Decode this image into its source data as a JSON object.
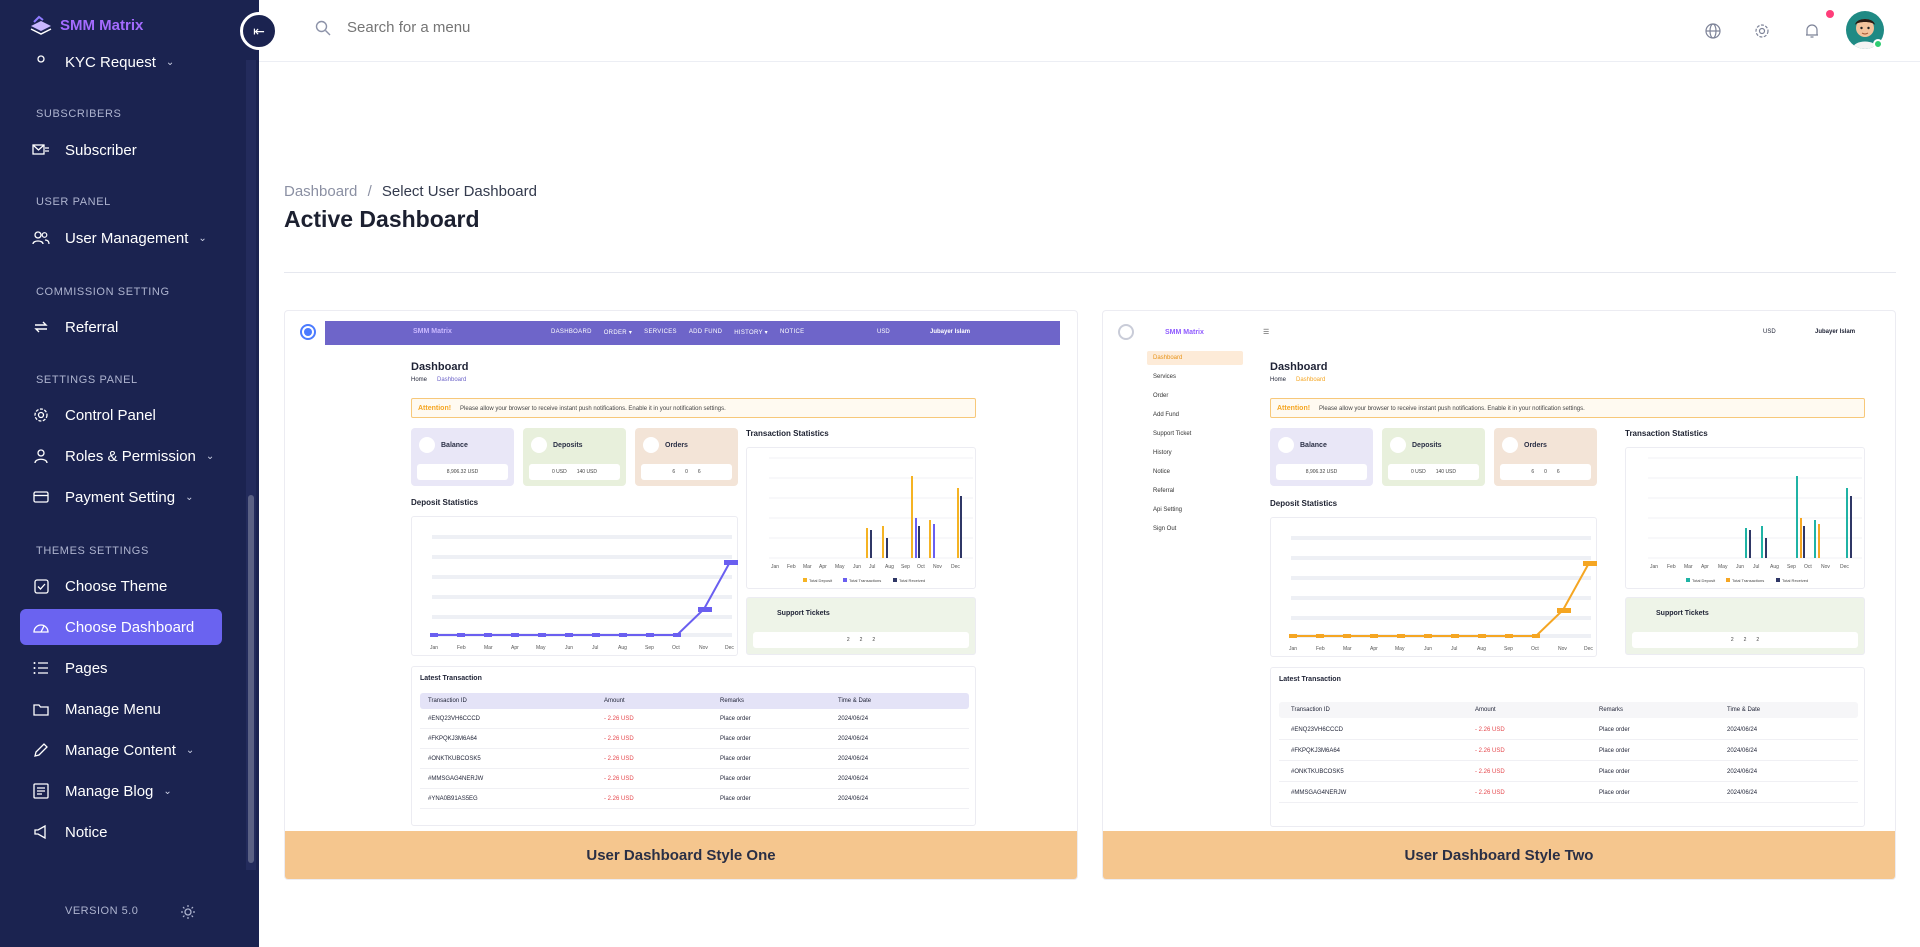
{
  "app": {
    "name": "SMM Matrix",
    "version": "VERSION 5.0"
  },
  "sidebar": {
    "partial_item": "KYC Request",
    "sections": [
      {
        "title": "SUBSCRIBERS",
        "items": [
          {
            "label": "Subscriber",
            "icon": "subscriber-icon",
            "has_children": false
          }
        ]
      },
      {
        "title": "USER PANEL",
        "items": [
          {
            "label": "User Management",
            "icon": "users-icon",
            "has_children": true
          }
        ]
      },
      {
        "title": "COMMISSION SETTING",
        "items": [
          {
            "label": "Referral",
            "icon": "referral-icon",
            "has_children": false
          }
        ]
      },
      {
        "title": "SETTINGS PANEL",
        "items": [
          {
            "label": "Control Panel",
            "icon": "gear-icon",
            "has_children": false
          },
          {
            "label": "Roles & Permission",
            "icon": "roles-icon",
            "has_children": true
          },
          {
            "label": "Payment Setting",
            "icon": "payment-icon",
            "has_children": true
          }
        ]
      },
      {
        "title": "THEMES SETTINGS",
        "items": [
          {
            "label": "Choose Theme",
            "icon": "checkbox-icon",
            "has_children": false
          },
          {
            "label": "Choose Dashboard",
            "icon": "dashboard-icon",
            "has_children": false,
            "active": true
          },
          {
            "label": "Pages",
            "icon": "list-icon",
            "has_children": false
          },
          {
            "label": "Manage Menu",
            "icon": "folder-icon",
            "has_children": false
          },
          {
            "label": "Manage Content",
            "icon": "pen-icon",
            "has_children": true
          },
          {
            "label": "Manage Blog",
            "icon": "blog-icon",
            "has_children": true
          },
          {
            "label": "Notice",
            "icon": "megaphone-icon",
            "has_children": false
          }
        ]
      }
    ]
  },
  "topbar": {
    "search_placeholder": "Search for a menu"
  },
  "breadcrumb": {
    "home": "Dashboard",
    "separator": "/",
    "current": "Select User Dashboard"
  },
  "page_title": "Active Dashboard",
  "dashboards": [
    {
      "label": "User Dashboard Style One",
      "selected": true
    },
    {
      "label": "User Dashboard Style Two",
      "selected": false
    }
  ],
  "preview": {
    "brand": "SMM Matrix",
    "nav_links": [
      "DASHBOARD",
      "ORDER ▾",
      "SERVICES",
      "ADD FUND",
      "HISTORY ▾",
      "NOTICE"
    ],
    "currency": "USD",
    "user": "Jubayer Islam",
    "title": "Dashboard",
    "crumb_home": "Home",
    "crumb_current": "Dashboard",
    "attention_label": "Attention!",
    "attention_text": "Please allow your browser to receive instant push notifications. Enable it in your notification settings.",
    "balance_label": "Balance",
    "balance_value": "8,906.32 USD",
    "deposits_label": "Deposits",
    "deposits_values": [
      "0 USD",
      "140 USD"
    ],
    "orders_label": "Orders",
    "orders_values": [
      "6",
      "0",
      "6"
    ],
    "deposit_stats_title": "Deposit Statistics",
    "transaction_stats_title": "Transaction Statistics",
    "support_title": "Support Tickets",
    "support_values": [
      "2",
      "2",
      "2"
    ],
    "latest_title": "Latest Transaction",
    "table_headers": [
      "Transaction ID",
      "Amount",
      "Remarks",
      "Time & Date"
    ],
    "rows": [
      [
        "#ENQ23VH6CCCD",
        "- 2.26 USD",
        "Place order",
        "2024/06/24"
      ],
      [
        "#FKPQKJ3M6A64",
        "- 2.26 USD",
        "Place order",
        "2024/06/24"
      ],
      [
        "#ONKTKUBCOSK5",
        "- 2.26 USD",
        "Place order",
        "2024/06/24"
      ],
      [
        "#MMSGAG4NERJW",
        "- 2.26 USD",
        "Place order",
        "2024/06/24"
      ],
      [
        "#YNA0B91AS5EG",
        "- 2.26 USD",
        "Place order",
        "2024/06/24"
      ]
    ],
    "months": [
      "Jan",
      "Feb",
      "Mar",
      "Apr",
      "May",
      "Jun",
      "Jul",
      "Aug",
      "Sep",
      "Oct",
      "Nov",
      "Dec"
    ],
    "legend": [
      "Total Deposit",
      "Total Transactions",
      "Total Received"
    ],
    "sidebar2_items": [
      "Dashboard",
      "Services",
      "Order",
      "Add Fund",
      "Support Ticket",
      "History",
      "Notice",
      "Referral",
      "Api Setting",
      "Sign Out"
    ]
  },
  "colors": {
    "sidebar_bg": "#1b2350",
    "active_item": "#6a63f0",
    "footer_bg": "#f5c68e",
    "accent_purple": "#6e65c9",
    "accent_orange": "#f5a623"
  }
}
